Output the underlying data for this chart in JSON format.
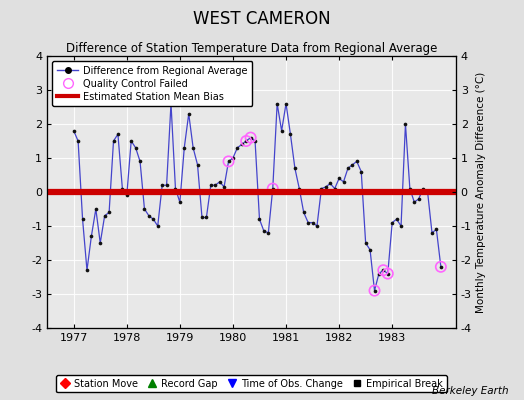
{
  "title": "WEST CAMERON",
  "subtitle": "Difference of Station Temperature Data from Regional Average",
  "ylabel_right": "Monthly Temperature Anomaly Difference (°C)",
  "credit": "Berkeley Earth",
  "bias": 0.0,
  "ylim": [
    -4,
    4
  ],
  "yticks": [
    -4,
    -3,
    -2,
    -1,
    0,
    1,
    2,
    3,
    4
  ],
  "xlim": [
    1976.5,
    1984.2
  ],
  "xticks": [
    1977,
    1978,
    1979,
    1980,
    1981,
    1982,
    1983
  ],
  "background_color": "#e0e0e0",
  "plot_bg": "#e8e8e8",
  "line_color": "#4444cc",
  "marker_color": "#111111",
  "bias_color": "#cc0000",
  "qc_color": "#ff66ff",
  "data": [
    [
      1977.0,
      1.8
    ],
    [
      1977.083,
      1.5
    ],
    [
      1977.167,
      -0.8
    ],
    [
      1977.25,
      -2.3
    ],
    [
      1977.333,
      -1.3
    ],
    [
      1977.417,
      -0.5
    ],
    [
      1977.5,
      -1.5
    ],
    [
      1977.583,
      -0.7
    ],
    [
      1977.667,
      -0.6
    ],
    [
      1977.75,
      1.5
    ],
    [
      1977.833,
      1.7
    ],
    [
      1977.917,
      0.1
    ],
    [
      1978.0,
      -0.1
    ],
    [
      1978.083,
      1.5
    ],
    [
      1978.167,
      1.3
    ],
    [
      1978.25,
      0.9
    ],
    [
      1978.333,
      -0.5
    ],
    [
      1978.417,
      -0.7
    ],
    [
      1978.5,
      -0.8
    ],
    [
      1978.583,
      -1.0
    ],
    [
      1978.667,
      0.2
    ],
    [
      1978.75,
      0.2
    ],
    [
      1978.833,
      2.6
    ],
    [
      1978.917,
      0.1
    ],
    [
      1979.0,
      -0.3
    ],
    [
      1979.083,
      1.3
    ],
    [
      1979.167,
      2.3
    ],
    [
      1979.25,
      1.3
    ],
    [
      1979.333,
      0.8
    ],
    [
      1979.417,
      -0.75
    ],
    [
      1979.5,
      -0.75
    ],
    [
      1979.583,
      0.2
    ],
    [
      1979.667,
      0.2
    ],
    [
      1979.75,
      0.3
    ],
    [
      1979.833,
      0.15
    ],
    [
      1979.917,
      0.9
    ],
    [
      1980.0,
      1.0
    ],
    [
      1980.083,
      1.3
    ],
    [
      1980.167,
      1.4
    ],
    [
      1980.25,
      1.5
    ],
    [
      1980.333,
      1.6
    ],
    [
      1980.417,
      1.5
    ],
    [
      1980.5,
      -0.8
    ],
    [
      1980.583,
      -1.15
    ],
    [
      1980.667,
      -1.2
    ],
    [
      1980.75,
      0.1
    ],
    [
      1980.833,
      2.6
    ],
    [
      1980.917,
      1.8
    ],
    [
      1981.0,
      2.6
    ],
    [
      1981.083,
      1.7
    ],
    [
      1981.167,
      0.7
    ],
    [
      1981.25,
      0.1
    ],
    [
      1981.333,
      -0.6
    ],
    [
      1981.417,
      -0.9
    ],
    [
      1981.5,
      -0.9
    ],
    [
      1981.583,
      -1.0
    ],
    [
      1981.667,
      0.1
    ],
    [
      1981.75,
      0.15
    ],
    [
      1981.833,
      0.25
    ],
    [
      1981.917,
      0.1
    ],
    [
      1982.0,
      0.4
    ],
    [
      1982.083,
      0.3
    ],
    [
      1982.167,
      0.7
    ],
    [
      1982.25,
      0.8
    ],
    [
      1982.333,
      0.9
    ],
    [
      1982.417,
      0.6
    ],
    [
      1982.5,
      -1.5
    ],
    [
      1982.583,
      -1.7
    ],
    [
      1982.667,
      -2.9
    ],
    [
      1982.75,
      -2.4
    ],
    [
      1982.833,
      -2.3
    ],
    [
      1982.917,
      -2.4
    ],
    [
      1983.0,
      -0.9
    ],
    [
      1983.083,
      -0.8
    ],
    [
      1983.167,
      -1.0
    ],
    [
      1983.25,
      2.0
    ],
    [
      1983.333,
      0.1
    ],
    [
      1983.417,
      -0.3
    ],
    [
      1983.5,
      -0.2
    ],
    [
      1983.583,
      0.1
    ],
    [
      1983.667,
      0.0
    ],
    [
      1983.75,
      -1.2
    ],
    [
      1983.833,
      -1.1
    ],
    [
      1983.917,
      -2.2
    ]
  ],
  "qc_points": [
    [
      1979.917,
      0.9
    ],
    [
      1980.25,
      1.5
    ],
    [
      1980.333,
      1.6
    ],
    [
      1980.75,
      0.1
    ],
    [
      1982.667,
      -2.9
    ],
    [
      1982.833,
      -2.3
    ],
    [
      1982.917,
      -2.4
    ],
    [
      1983.917,
      -2.2
    ]
  ]
}
